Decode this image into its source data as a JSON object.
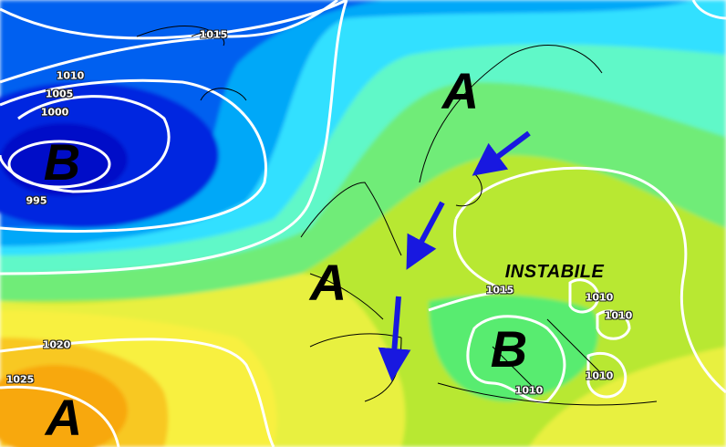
{
  "map": {
    "pressure_centers": [
      {
        "label": "A",
        "kind": "high",
        "region": "Scandinavia"
      },
      {
        "label": "B",
        "kind": "low",
        "region": "North Atlantic"
      },
      {
        "label": "A",
        "kind": "high",
        "region": "Bay of Biscay"
      },
      {
        "label": "B",
        "kind": "low",
        "region": "Italy"
      },
      {
        "label": "A",
        "kind": "high",
        "region": "Azores"
      }
    ],
    "isobar_labels": [
      "1015",
      "1010",
      "1005",
      "1000",
      "995",
      "1020",
      "1025",
      "1015",
      "1010",
      "1010",
      "1010",
      "1010"
    ],
    "annotation": "INSTABILE",
    "arrows": [
      "northeast-flow-scandinavia",
      "north-flow-france",
      "north-flow-spain"
    ],
    "colors": {
      "deep_low": "#0010d8",
      "low": "#0050f0",
      "mid_low": "#0098f8",
      "cyan": "#30e0ff",
      "teal": "#60f8c8",
      "green": "#70ec78",
      "yellow_green": "#b8e830",
      "yellow": "#f8f040",
      "orange": "#f8b818",
      "isobar": "#ffffff",
      "arrow": "#1818e0"
    }
  }
}
